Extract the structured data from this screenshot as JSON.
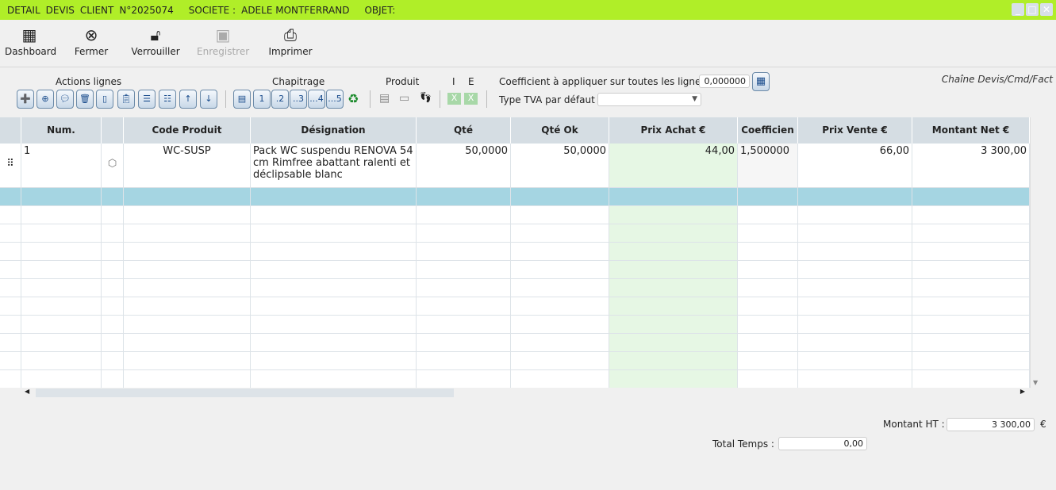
{
  "title": {
    "parts": [
      "DETAIL",
      "DEVIS",
      "CLIENT",
      "N°2025074"
    ],
    "societe_label": "SOCIETE :",
    "societe": "ADELE MONTFERRAND",
    "objet_label": "OBJET:"
  },
  "window_buttons": {
    "minimize": "_",
    "maximize": "□",
    "close": "✕"
  },
  "toolbar": [
    {
      "label": "Dashboard",
      "icon": "grid-icon"
    },
    {
      "label": "Fermer",
      "icon": "close-circle-icon"
    },
    {
      "label": "Verrouiller",
      "icon": "lock-icon"
    },
    {
      "label": "Enregistrer",
      "icon": "save-icon",
      "disabled": true
    },
    {
      "label": "Imprimer",
      "icon": "printer-icon"
    }
  ],
  "sections": {
    "actions": "Actions lignes",
    "chapitrage": "Chapitrage",
    "produit": "Produit",
    "i": "I",
    "e": "E"
  },
  "chapitrage_buttons": [
    "1",
    ".2",
    "..3",
    "...4",
    "...5"
  ],
  "coef": {
    "label": "Coefficient à appliquer sur toutes les lignes",
    "value": "0,000000"
  },
  "tva": {
    "label": "Type TVA par défaut",
    "value": ""
  },
  "chaine": "Chaîne Devis/Cmd/Fact",
  "table": {
    "headers": [
      "Num.",
      "",
      "Code Produit",
      "Désignation",
      "Qté",
      "Qté Ok",
      "Prix Achat €",
      "Coefficien",
      "Prix Vente €",
      "Montant Net €"
    ],
    "rows": [
      {
        "num": "1",
        "code": "WC-SUSP",
        "designation": "Pack WC suspendu RENOVA 54 cm Rimfree abattant ralenti et déclipsable blanc",
        "qte": "50,0000",
        "qte_ok": "50,0000",
        "prix_achat": "44,00",
        "coef": "1,500000",
        "prix_vente": "66,00",
        "montant": "3 300,00"
      }
    ]
  },
  "totals": {
    "montant_ht_label": "Montant HT :",
    "montant_ht": "3 300,00",
    "currency": "€",
    "temps_label": "Total Temps :",
    "temps": "0,00"
  },
  "colors": {
    "titlebar": "#b0ee28",
    "selected_row": "#a5d5e2",
    "qte_ok_col": "#e6f7e4"
  }
}
